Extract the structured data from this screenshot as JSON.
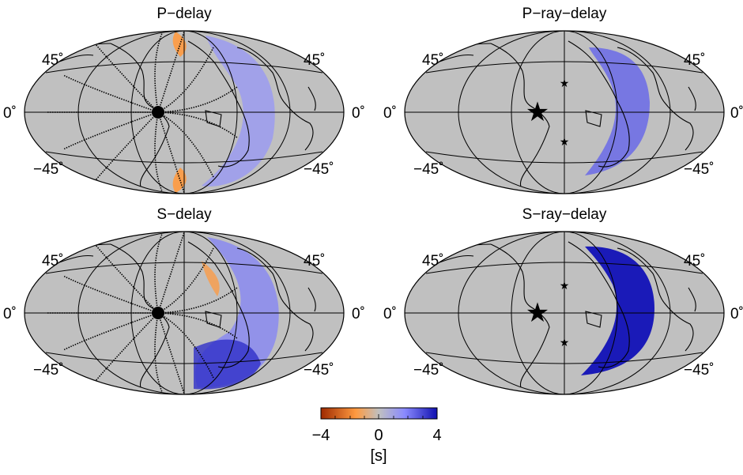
{
  "panels": [
    {
      "title": "P−delay",
      "lat_labels": {
        "north": "45˚",
        "equator": "0˚",
        "south": "−45˚"
      }
    },
    {
      "title": "P−ray−delay",
      "lat_labels": {
        "north": "45˚",
        "equator": "0˚",
        "south": "−45˚"
      }
    },
    {
      "title": "S−delay",
      "lat_labels": {
        "north": "45˚",
        "equator": "0˚",
        "south": "−45˚"
      }
    },
    {
      "title": "S−ray−delay",
      "lat_labels": {
        "north": "45˚",
        "equator": "0˚",
        "south": "−45˚"
      }
    }
  ],
  "colorbar": {
    "ticks": [
      "−4",
      "0",
      "4"
    ],
    "range": [
      -4,
      4
    ],
    "unit": "[s]",
    "colors": [
      "#9e2a00",
      "#ff9a40",
      "#c0c0c0",
      "#8a8aff",
      "#1010b0"
    ]
  },
  "map_colors": {
    "background": "#c0c0c0",
    "positive": "#3b3bd6",
    "negative": "#ff9a40"
  }
}
